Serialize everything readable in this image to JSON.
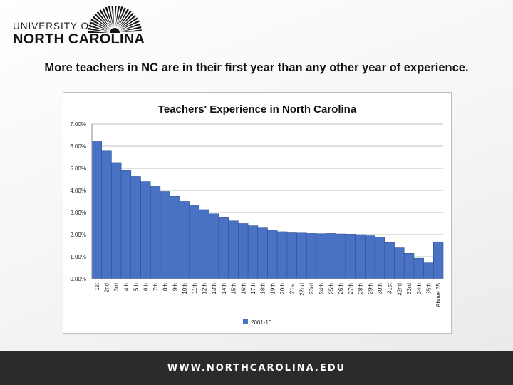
{
  "logo": {
    "line1": "UNIVERSITY OF",
    "line2": "NORTH CAROLINA",
    "sun_color": "#111111"
  },
  "headline": "More teachers in NC are in their first year than any other year of experience.",
  "footer": {
    "url": "WWW.NORTHCAROLINA.EDU"
  },
  "colors": {
    "bar": "#4a72c4",
    "bar_edge": "#2f4f8f",
    "footer_bg": "#2b2b2b"
  },
  "chart_data": {
    "type": "bar",
    "title": "Teachers' Experience in North Carolina",
    "xlabel": "",
    "ylabel": "",
    "ylim": [
      0,
      0.07
    ],
    "yticks": [
      "0.00%",
      "1.00%",
      "2.00%",
      "3.00%",
      "4.00%",
      "5.00%",
      "6.00%",
      "7.00%"
    ],
    "grid": true,
    "legend_position": "bottom",
    "categories": [
      "1st",
      "2nd",
      "3rd",
      "4th",
      "5th",
      "6th",
      "7th",
      "8th",
      "9th",
      "10th",
      "11th",
      "12th",
      "13th",
      "14th",
      "15th",
      "16th",
      "17th",
      "18th",
      "19th",
      "20th",
      "21st",
      "22nd",
      "23rd",
      "24th",
      "25th",
      "26th",
      "27th",
      "28th",
      "29th",
      "30th",
      "31st",
      "32nd",
      "33rd",
      "34th",
      "35th",
      "Above 35"
    ],
    "series": [
      {
        "name": "2001-10",
        "values": [
          0.0621,
          0.0578,
          0.0526,
          0.049,
          0.0463,
          0.044,
          0.0418,
          0.0395,
          0.0373,
          0.035,
          0.0333,
          0.0313,
          0.0294,
          0.0277,
          0.0262,
          0.025,
          0.024,
          0.023,
          0.022,
          0.0213,
          0.0208,
          0.0207,
          0.0205,
          0.0204,
          0.0205,
          0.0203,
          0.0202,
          0.02,
          0.0195,
          0.0188,
          0.0164,
          0.014,
          0.0115,
          0.0093,
          0.0072,
          0.0167
        ]
      }
    ]
  }
}
